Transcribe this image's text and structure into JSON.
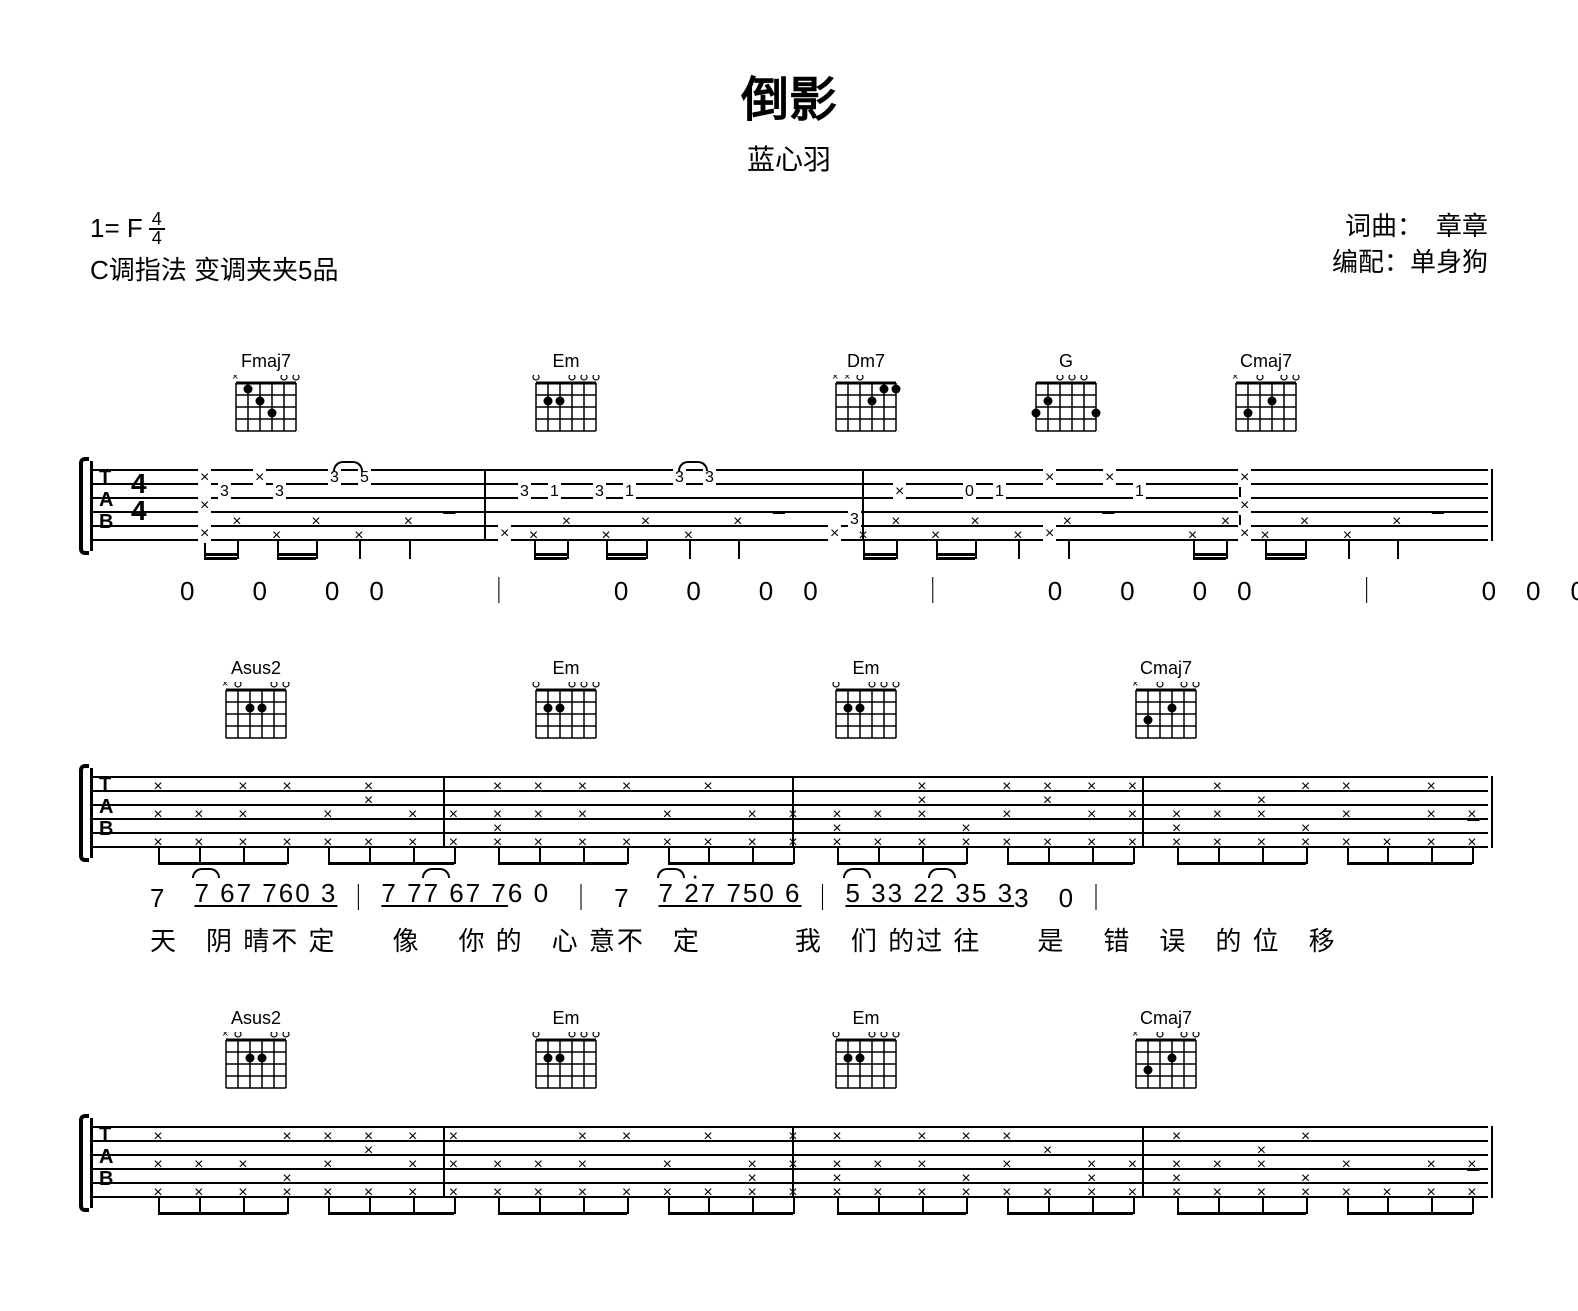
{
  "title": "倒影",
  "artist": "蓝心羽",
  "key_line": "1= F",
  "time_sig_top": "4",
  "time_sig_bot": "4",
  "tuning_line": "C调指法  变调夹夹5品",
  "credit1": "词曲：　章章",
  "credit2": "编配：单身狗",
  "chords": {
    "fmaj7": "Fmaj7",
    "em": "Em",
    "dm7": "Dm7",
    "g": "G",
    "cmaj7": "Cmaj7",
    "asus2": "Asus2"
  },
  "tab_letters": [
    "T",
    "A",
    "B"
  ],
  "system1": {
    "chord_positions": [
      140,
      440,
      740,
      940,
      1140
    ],
    "chord_names": [
      "fmaj7",
      "em",
      "dm7",
      "g",
      "cmaj7"
    ],
    "notation": [
      "0　　0　　0　0",
      "0　　0　　0　0",
      "0　　0　　0　0",
      "0　0　0　0"
    ],
    "frets_row1": [
      "×",
      "3",
      "×",
      "3",
      "3",
      "5",
      "",
      "",
      "3",
      "1",
      "3",
      "1",
      "3",
      "3",
      "",
      "",
      "",
      "",
      "0",
      "1",
      "",
      "×",
      "1",
      "",
      "×"
    ],
    "barlines_pct": [
      0,
      28,
      55,
      82,
      100
    ]
  },
  "system2": {
    "chord_positions": [
      130,
      440,
      740,
      1040
    ],
    "chord_names": [
      "asus2",
      "em",
      "em",
      "cmaj7"
    ],
    "notation_segs": [
      "7　",
      "7 6 7 7 6",
      " ",
      "0 3",
      "7 7",
      " ",
      "7 6 7 7",
      " 6 0　　",
      "7　",
      "7 2 7 7 5",
      " ",
      "0 6",
      "5 3 3 2",
      " ",
      "2 3 5 3",
      " 3　0"
    ],
    "lyrics_segs": [
      "天　阴 晴不 定　　像",
      "你 的　心 意不　定",
      "　　我　们 的过 往　　是",
      "错　误　的 位　移"
    ],
    "barlines_pct": [
      0,
      25,
      50,
      75,
      100
    ]
  },
  "system3": {
    "chord_positions": [
      130,
      440,
      740,
      1040
    ],
    "chord_names": [
      "asus2",
      "em",
      "em",
      "cmaj7"
    ],
    "barlines_pct": [
      0,
      25,
      50,
      75,
      100
    ]
  },
  "colors": {
    "line": "#000000",
    "bg": "#ffffff"
  }
}
